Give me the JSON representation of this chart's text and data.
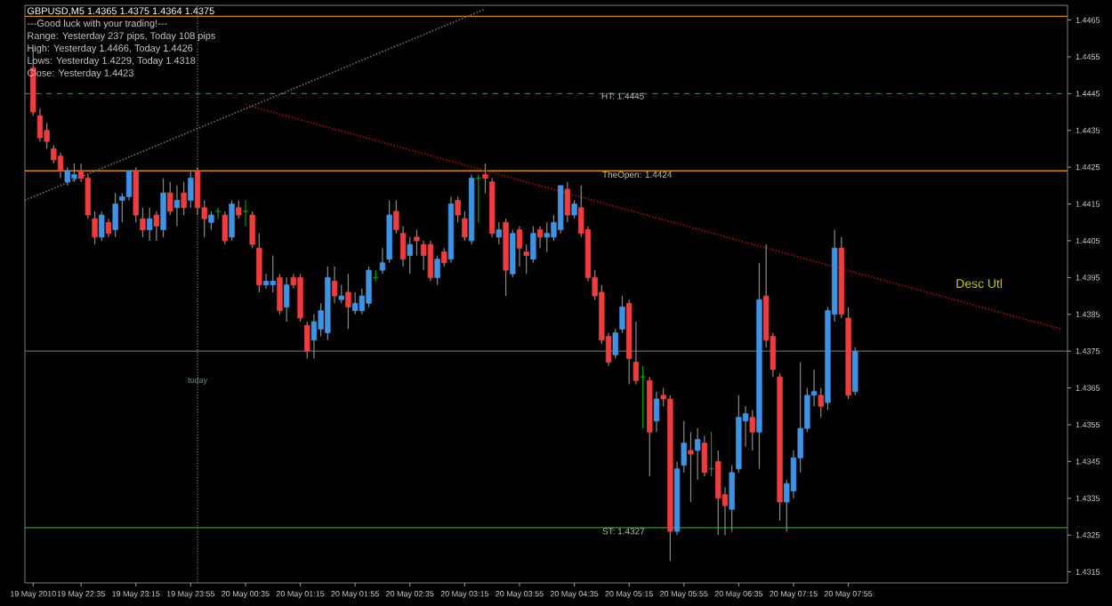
{
  "chart_data": {
    "type": "candlestick",
    "title": "GBPUSD,M5  1.4365 1.4375 1.4364 1.4375",
    "annotations": [
      "---Good luck with your trading!---",
      "Range: Yesterday 237 pips, Today 108 pips",
      "High: Yesterday 1.4466, Today 1.4426",
      "Lows: Yesterday 1.4229, Today 1.4318",
      "Close: Yesterday 1.4423"
    ],
    "x": [
      "2010-05-19T22:00",
      "2010-05-19T22:05",
      "2010-05-19T22:10",
      "2010-05-19T22:15",
      "2010-05-19T22:20",
      "2010-05-19T22:25",
      "2010-05-19T22:30",
      "2010-05-19T22:35",
      "2010-05-19T22:40",
      "2010-05-19T22:45",
      "2010-05-19T22:50",
      "2010-05-19T22:55",
      "2010-05-19T23:00",
      "2010-05-19T23:05",
      "2010-05-19T23:10",
      "2010-05-19T23:15",
      "2010-05-19T23:20",
      "2010-05-19T23:25",
      "2010-05-19T23:30",
      "2010-05-19T23:35",
      "2010-05-19T23:40",
      "2010-05-19T23:45",
      "2010-05-19T23:50",
      "2010-05-19T23:55",
      "2010-05-20T00:00",
      "2010-05-20T00:05",
      "2010-05-20T00:10",
      "2010-05-20T00:15",
      "2010-05-20T00:20",
      "2010-05-20T00:25",
      "2010-05-20T00:30",
      "2010-05-20T00:35",
      "2010-05-20T00:40",
      "2010-05-20T00:45",
      "2010-05-20T00:50",
      "2010-05-20T00:55",
      "2010-05-20T01:00",
      "2010-05-20T01:05",
      "2010-05-20T01:10",
      "2010-05-20T01:15",
      "2010-05-20T01:20",
      "2010-05-20T01:25",
      "2010-05-20T01:30",
      "2010-05-20T01:35",
      "2010-05-20T01:40",
      "2010-05-20T01:45",
      "2010-05-20T01:50",
      "2010-05-20T01:55",
      "2010-05-20T02:00",
      "2010-05-20T02:05",
      "2010-05-20T02:10",
      "2010-05-20T02:15",
      "2010-05-20T02:20",
      "2010-05-20T02:25",
      "2010-05-20T02:30",
      "2010-05-20T02:35",
      "2010-05-20T02:40",
      "2010-05-20T02:45",
      "2010-05-20T02:50",
      "2010-05-20T02:55",
      "2010-05-20T03:00",
      "2010-05-20T03:05",
      "2010-05-20T03:10",
      "2010-05-20T03:15",
      "2010-05-20T03:20",
      "2010-05-20T03:25",
      "2010-05-20T03:30",
      "2010-05-20T03:35",
      "2010-05-20T03:40",
      "2010-05-20T03:45",
      "2010-05-20T03:50",
      "2010-05-20T03:55",
      "2010-05-20T04:00",
      "2010-05-20T04:05",
      "2010-05-20T04:10",
      "2010-05-20T04:15",
      "2010-05-20T04:20",
      "2010-05-20T04:25",
      "2010-05-20T04:30",
      "2010-05-20T04:35",
      "2010-05-20T04:40",
      "2010-05-20T04:45",
      "2010-05-20T04:50",
      "2010-05-20T04:55",
      "2010-05-20T05:00",
      "2010-05-20T05:05",
      "2010-05-20T05:10",
      "2010-05-20T05:15",
      "2010-05-20T05:20",
      "2010-05-20T05:25",
      "2010-05-20T05:30",
      "2010-05-20T05:35",
      "2010-05-20T05:40",
      "2010-05-20T05:45",
      "2010-05-20T05:50",
      "2010-05-20T05:55",
      "2010-05-20T06:00",
      "2010-05-20T06:05",
      "2010-05-20T06:10",
      "2010-05-20T06:15",
      "2010-05-20T06:20",
      "2010-05-20T06:25",
      "2010-05-20T06:30",
      "2010-05-20T06:35",
      "2010-05-20T06:40",
      "2010-05-20T06:45",
      "2010-05-20T06:50",
      "2010-05-20T06:55",
      "2010-05-20T07:00",
      "2010-05-20T07:05",
      "2010-05-20T07:10",
      "2010-05-20T07:15",
      "2010-05-20T07:20",
      "2010-05-20T07:25",
      "2010-05-20T07:30",
      "2010-05-20T07:35",
      "2010-05-20T07:40",
      "2010-05-20T07:45",
      "2010-05-20T07:50",
      "2010-05-20T07:55",
      "2010-05-20T08:00"
    ],
    "ohlc": [
      [
        1.4452,
        1.4457,
        1.4439,
        1.444
      ],
      [
        1.4439,
        1.4441,
        1.4432,
        1.4433
      ],
      [
        1.4435,
        1.4437,
        1.443,
        1.4432
      ],
      [
        1.443,
        1.4431,
        1.4426,
        1.4427
      ],
      [
        1.4428,
        1.4429,
        1.4422,
        1.4424
      ],
      [
        1.4421,
        1.4425,
        1.442,
        1.4424
      ],
      [
        1.4422,
        1.4426,
        1.4421,
        1.4423
      ],
      [
        1.4424,
        1.4426,
        1.4421,
        1.4422
      ],
      [
        1.4422,
        1.4423,
        1.4411,
        1.4412
      ],
      [
        1.4411,
        1.4413,
        1.4404,
        1.4406
      ],
      [
        1.4406,
        1.4413,
        1.4405,
        1.4412
      ],
      [
        1.441,
        1.4411,
        1.4406,
        1.4407
      ],
      [
        1.4408,
        1.4418,
        1.4406,
        1.4415
      ],
      [
        1.4416,
        1.4418,
        1.441,
        1.4417
      ],
      [
        1.4417,
        1.4424,
        1.4416,
        1.4424
      ],
      [
        1.4424,
        1.4425,
        1.441,
        1.4412
      ],
      [
        1.4411,
        1.4414,
        1.4406,
        1.4408
      ],
      [
        1.4408,
        1.4414,
        1.4405,
        1.4411
      ],
      [
        1.4412,
        1.4413,
        1.4405,
        1.4409
      ],
      [
        1.4408,
        1.4422,
        1.4406,
        1.4418
      ],
      [
        1.4418,
        1.4421,
        1.4412,
        1.4413
      ],
      [
        1.4414,
        1.442,
        1.4409,
        1.4416
      ],
      [
        1.4418,
        1.4421,
        1.4412,
        1.4414
      ],
      [
        1.4416,
        1.4424,
        1.4414,
        1.4422
      ],
      [
        1.4424,
        1.4425,
        1.4412,
        1.4414
      ],
      [
        1.4414,
        1.4416,
        1.4406,
        1.4411
      ],
      [
        1.441,
        1.4413,
        1.4408,
        1.4412
      ],
      [
        1.4413,
        1.4414,
        1.4411,
        1.4413
      ],
      [
        1.4412,
        1.4413,
        1.4404,
        1.4405
      ],
      [
        1.4406,
        1.4416,
        1.4405,
        1.4415
      ],
      [
        1.4414,
        1.4416,
        1.4411,
        1.4412
      ],
      [
        1.4413,
        1.4416,
        1.4409,
        1.4413
      ],
      [
        1.4412,
        1.4413,
        1.4403,
        1.4404
      ],
      [
        1.4403,
        1.4407,
        1.4391,
        1.4393
      ],
      [
        1.4393,
        1.4396,
        1.4392,
        1.4394
      ],
      [
        1.4393,
        1.4401,
        1.4391,
        1.4394
      ],
      [
        1.4395,
        1.4396,
        1.4385,
        1.4386
      ],
      [
        1.4387,
        1.4395,
        1.4383,
        1.4393
      ],
      [
        1.4395,
        1.4396,
        1.4392,
        1.4393
      ],
      [
        1.4395,
        1.4396,
        1.4383,
        1.4384
      ],
      [
        1.4382,
        1.4383,
        1.4373,
        1.4375
      ],
      [
        1.4378,
        1.4385,
        1.4373,
        1.4383
      ],
      [
        1.4381,
        1.4388,
        1.4379,
        1.4386
      ],
      [
        1.438,
        1.4398,
        1.4378,
        1.4395
      ],
      [
        1.4394,
        1.4398,
        1.4388,
        1.439
      ],
      [
        1.4389,
        1.4393,
        1.4388,
        1.439
      ],
      [
        1.4391,
        1.4396,
        1.4381,
        1.4387
      ],
      [
        1.4386,
        1.4391,
        1.4385,
        1.4388
      ],
      [
        1.4386,
        1.4392,
        1.4385,
        1.439
      ],
      [
        1.4388,
        1.4398,
        1.4387,
        1.4397
      ],
      [
        1.4395,
        1.4397,
        1.4394,
        1.4395
      ],
      [
        1.4397,
        1.4403,
        1.4396,
        1.4399
      ],
      [
        1.44,
        1.4416,
        1.4399,
        1.4412
      ],
      [
        1.4413,
        1.4416,
        1.4407,
        1.4408
      ],
      [
        1.4407,
        1.4409,
        1.4398,
        1.44
      ],
      [
        1.4401,
        1.4406,
        1.4396,
        1.4404
      ],
      [
        1.4406,
        1.4408,
        1.4401,
        1.4405
      ],
      [
        1.4404,
        1.4405,
        1.4397,
        1.4401
      ],
      [
        1.4404,
        1.4405,
        1.4394,
        1.4395
      ],
      [
        1.4395,
        1.4401,
        1.4393,
        1.44
      ],
      [
        1.4402,
        1.4403,
        1.4398,
        1.4399
      ],
      [
        1.44,
        1.4417,
        1.4399,
        1.4415
      ],
      [
        1.4416,
        1.4417,
        1.441,
        1.4412
      ],
      [
        1.4411,
        1.4413,
        1.4405,
        1.4406
      ],
      [
        1.4405,
        1.4423,
        1.4404,
        1.4422
      ],
      [
        1.4422,
        1.4423,
        1.441,
        1.4422
      ],
      [
        1.4423,
        1.4426,
        1.4418,
        1.4422
      ],
      [
        1.4421,
        1.4422,
        1.4406,
        1.4407
      ],
      [
        1.4406,
        1.441,
        1.4404,
        1.4408
      ],
      [
        1.441,
        1.4411,
        1.439,
        1.4397
      ],
      [
        1.4396,
        1.4408,
        1.4395,
        1.4407
      ],
      [
        1.4408,
        1.4409,
        1.4398,
        1.4403
      ],
      [
        1.4402,
        1.4404,
        1.4396,
        1.4401
      ],
      [
        1.44,
        1.4409,
        1.4399,
        1.4407
      ],
      [
        1.4408,
        1.4409,
        1.4403,
        1.4406
      ],
      [
        1.4406,
        1.441,
        1.4402,
        1.4407
      ],
      [
        1.4406,
        1.4412,
        1.4405,
        1.441
      ],
      [
        1.4408,
        1.442,
        1.4407,
        1.442
      ],
      [
        1.4419,
        1.4421,
        1.441,
        1.4412
      ],
      [
        1.4412,
        1.4416,
        1.4411,
        1.4415
      ],
      [
        1.4414,
        1.442,
        1.4406,
        1.4407
      ],
      [
        1.4408,
        1.4409,
        1.4394,
        1.4395
      ],
      [
        1.4395,
        1.4397,
        1.4389,
        1.439
      ],
      [
        1.4391,
        1.4393,
        1.4377,
        1.4378
      ],
      [
        1.4379,
        1.438,
        1.4371,
        1.4372
      ],
      [
        1.4374,
        1.4381,
        1.4373,
        1.438
      ],
      [
        1.4381,
        1.439,
        1.438,
        1.4387
      ],
      [
        1.4388,
        1.4389,
        1.4366,
        1.4373
      ],
      [
        1.4372,
        1.4383,
        1.4366,
        1.4367
      ],
      [
        1.4368,
        1.4371,
        1.4354,
        1.4368
      ],
      [
        1.4367,
        1.4368,
        1.4341,
        1.4353
      ],
      [
        1.4356,
        1.4364,
        1.4353,
        1.4362
      ],
      [
        1.4363,
        1.4365,
        1.436,
        1.4362
      ],
      [
        1.4362,
        1.4363,
        1.4318,
        1.4326
      ],
      [
        1.4326,
        1.4345,
        1.4325,
        1.4343
      ],
      [
        1.4344,
        1.4356,
        1.4342,
        1.435
      ],
      [
        1.4348,
        1.4353,
        1.4334,
        1.4347
      ],
      [
        1.4348,
        1.4354,
        1.434,
        1.4351
      ],
      [
        1.435,
        1.4352,
        1.4341,
        1.4342
      ],
      [
        1.4343,
        1.4353,
        1.4341,
        1.4343
      ],
      [
        1.4345,
        1.4348,
        1.4325,
        1.4335
      ],
      [
        1.4336,
        1.4338,
        1.4325,
        1.4333
      ],
      [
        1.4332,
        1.4344,
        1.4326,
        1.4342
      ],
      [
        1.4343,
        1.4363,
        1.4342,
        1.4357
      ],
      [
        1.4356,
        1.436,
        1.4349,
        1.4358
      ],
      [
        1.4357,
        1.4359,
        1.4348,
        1.4353
      ],
      [
        1.4353,
        1.4399,
        1.4343,
        1.4389
      ],
      [
        1.439,
        1.4404,
        1.4376,
        1.4378
      ],
      [
        1.4379,
        1.438,
        1.4368,
        1.437
      ],
      [
        1.4368,
        1.4369,
        1.4329,
        1.4334
      ],
      [
        1.4334,
        1.434,
        1.4326,
        1.4339
      ],
      [
        1.4337,
        1.4348,
        1.4335,
        1.4346
      ],
      [
        1.4346,
        1.4372,
        1.4342,
        1.4354
      ],
      [
        1.4354,
        1.4365,
        1.4353,
        1.4363
      ],
      [
        1.4363,
        1.437,
        1.436,
        1.4364
      ],
      [
        1.4363,
        1.4365,
        1.4357,
        1.436
      ],
      [
        1.4361,
        1.4387,
        1.4359,
        1.4386
      ],
      [
        1.4385,
        1.4408,
        1.4383,
        1.4403
      ],
      [
        1.4403,
        1.4406,
        1.4384,
        1.4385
      ],
      [
        1.4384,
        1.4387,
        1.4362,
        1.4363
      ],
      [
        1.4364,
        1.4376,
        1.4363,
        1.4375
      ]
    ],
    "colors": [
      "#f03c3c",
      "#f03c3c",
      "#f03c3c",
      "#f03c3c",
      "#f03c3c",
      "#3d94e6",
      "#3d94e6",
      "#f03c3c",
      "#f03c3c",
      "#f03c3c",
      "#3d94e6",
      "#f03c3c",
      "#3d94e6",
      "#3d94e6",
      "#3d94e6",
      "#f03c3c",
      "#f03c3c",
      "#3d94e6",
      "#f03c3c",
      "#3d94e6",
      "#f03c3c",
      "#3d94e6",
      "#f03c3c",
      "#3d94e6",
      "#f03c3c",
      "#f03c3c",
      "#3d94e6",
      "#00a000",
      "#f03c3c",
      "#3d94e6",
      "#f03c3c",
      "#00a000",
      "#f03c3c",
      "#f03c3c",
      "#3d94e6",
      "#3d94e6",
      "#f03c3c",
      "#3d94e6",
      "#f03c3c",
      "#f03c3c",
      "#f03c3c",
      "#3d94e6",
      "#3d94e6",
      "#3d94e6",
      "#f03c3c",
      "#3d94e6",
      "#f03c3c",
      "#3d94e6",
      "#3d94e6",
      "#3d94e6",
      "#00a000",
      "#3d94e6",
      "#3d94e6",
      "#f03c3c",
      "#f03c3c",
      "#3d94e6",
      "#f03c3c",
      "#f03c3c",
      "#f03c3c",
      "#3d94e6",
      "#f03c3c",
      "#3d94e6",
      "#f03c3c",
      "#f03c3c",
      "#3d94e6",
      "#00a000",
      "#f03c3c",
      "#f03c3c",
      "#3d94e6",
      "#f03c3c",
      "#3d94e6",
      "#f03c3c",
      "#f03c3c",
      "#3d94e6",
      "#f03c3c",
      "#3d94e6",
      "#3d94e6",
      "#3d94e6",
      "#f03c3c",
      "#3d94e6",
      "#f03c3c",
      "#f03c3c",
      "#f03c3c",
      "#f03c3c",
      "#f03c3c",
      "#3d94e6",
      "#3d94e6",
      "#f03c3c",
      "#f03c3c",
      "#00a000",
      "#f03c3c",
      "#3d94e6",
      "#f03c3c",
      "#f03c3c",
      "#3d94e6",
      "#3d94e6",
      "#f03c3c",
      "#3d94e6",
      "#f03c3c",
      "#00a000",
      "#f03c3c",
      "#f03c3c",
      "#3d94e6",
      "#3d94e6",
      "#3d94e6",
      "#f03c3c",
      "#3d94e6",
      "#f03c3c",
      "#f03c3c",
      "#f03c3c",
      "#3d94e6",
      "#3d94e6",
      "#3d94e6",
      "#3d94e6",
      "#3d94e6",
      "#f03c3c",
      "#3d94e6",
      "#3d94e6",
      "#f03c3c",
      "#f03c3c",
      "#3d94e6"
    ],
    "series": [
      {
        "type": "line",
        "name": "Desc Utl",
        "color": "#a01010",
        "line_style": "dotted",
        "x": [
          "2010-05-20T00:35",
          "2010-05-20T10:30"
        ],
        "values": [
          1.4442,
          1.4381
        ]
      },
      {
        "type": "line",
        "color": "#707070",
        "line_style": "dotted",
        "x": [
          "2010-05-19T21:54",
          "2010-05-20T03:30"
        ],
        "values": [
          1.4416,
          1.4468
        ]
      }
    ],
    "ref_lines": [
      {
        "axis": "y",
        "value": 1.4466,
        "color": "#d08a00"
      },
      {
        "axis": "y",
        "value": 1.4445,
        "label": "HT: 1.4445",
        "color": "#00a000",
        "line_style": "dashed"
      },
      {
        "axis": "y",
        "value": 1.4424,
        "label": "TheOpen: 1.4424",
        "color": "#d08a00"
      },
      {
        "axis": "y",
        "value": 1.4375,
        "color": "#5a6a6a"
      },
      {
        "axis": "y",
        "value": 1.4327,
        "label": "ST: 1.4327",
        "color": "#00b000"
      },
      {
        "axis": "x",
        "value": "2010-05-20T00:00",
        "label": "today",
        "color": "#808080",
        "line_style": "dotted"
      }
    ],
    "xlim": [
      "2010-05-19T21:54",
      "2010-05-20T10:35"
    ],
    "xticks": [
      {
        "value": "2010-05-19T22:00",
        "label": "19 May 2010"
      },
      {
        "value": "2010-05-19T22:35",
        "label": "19 May 22:35"
      },
      {
        "value": "2010-05-19T23:15",
        "label": "19 May 23:15"
      },
      {
        "value": "2010-05-19T23:55",
        "label": "19 May 23:55"
      },
      {
        "value": "2010-05-20T00:35",
        "label": "20 May 00:35"
      },
      {
        "value": "2010-05-20T01:15",
        "label": "20 May 01:15"
      },
      {
        "value": "2010-05-20T01:55",
        "label": "20 May 01:55"
      },
      {
        "value": "2010-05-20T02:35",
        "label": "20 May 02:35"
      },
      {
        "value": "2010-05-20T03:15",
        "label": "20 May 03:15"
      },
      {
        "value": "2010-05-20T03:55",
        "label": "20 May 03:55"
      },
      {
        "value": "2010-05-20T04:35",
        "label": "20 May 04:35"
      },
      {
        "value": "2010-05-20T05:15",
        "label": "20 May 05:15"
      },
      {
        "value": "2010-05-20T05:55",
        "label": "20 May 05:55"
      },
      {
        "value": "2010-05-20T06:35",
        "label": "20 May 06:35"
      },
      {
        "value": "2010-05-20T07:15",
        "label": "20 May 07:15"
      },
      {
        "value": "2010-05-20T07:55",
        "label": "20 May 07:55"
      }
    ],
    "ylim": [
      1.4312,
      1.4469
    ],
    "yticks": [
      1.4465,
      1.4455,
      1.4445,
      1.4435,
      1.4425,
      1.4415,
      1.4405,
      1.4395,
      1.4385,
      1.4375,
      1.4365,
      1.4355,
      1.4345,
      1.4335,
      1.4325,
      1.4315
    ]
  }
}
